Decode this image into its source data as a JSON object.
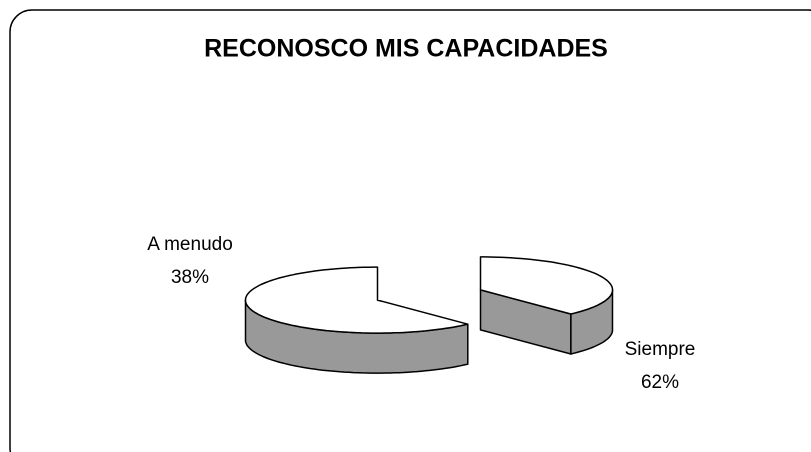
{
  "chart_data": {
    "type": "pie3d",
    "title": "RECONOSCO MIS CAPACIDADES",
    "categories": [
      "A menudo",
      "Siempre"
    ],
    "values": [
      38,
      62
    ],
    "value_labels": [
      "38%",
      "62%"
    ],
    "colors": {
      "top": "#ffffff",
      "side": "#999999"
    }
  }
}
